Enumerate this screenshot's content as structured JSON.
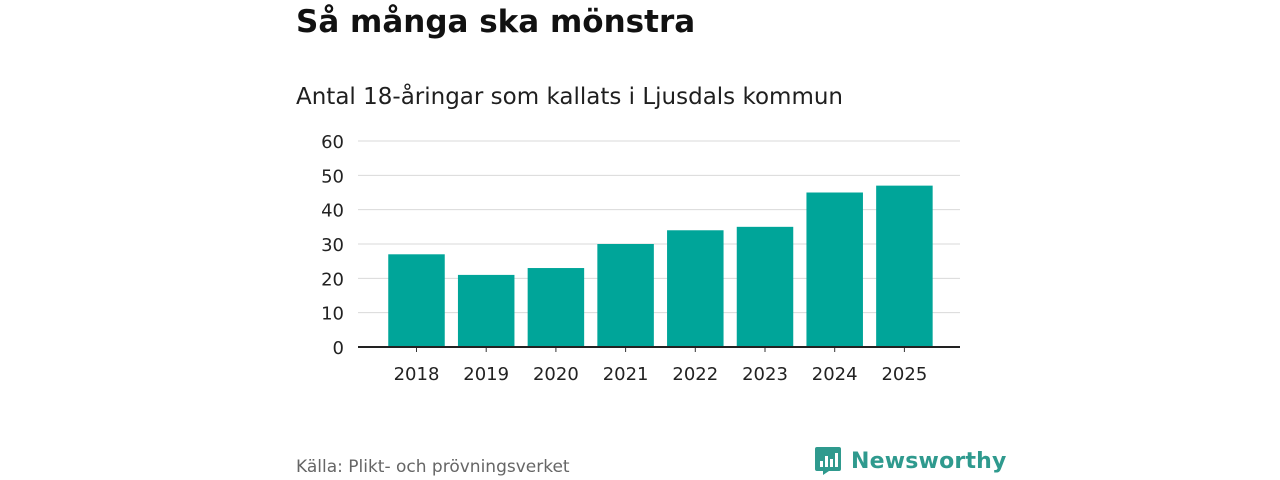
{
  "title": "Så många ska mönstra",
  "subtitle": "Antal 18-åringar som kallats i Ljusdals kommun",
  "source": "Källa: Plikt- och prövningsverket",
  "brand": {
    "name": "Newsworthy",
    "icon": "newsworthy-logo-icon",
    "color": "#2f9a8e"
  },
  "chart_data": {
    "type": "bar",
    "title": "Så många ska mönstra",
    "subtitle": "Antal 18-åringar som kallats i Ljusdals kommun",
    "categories": [
      "2018",
      "2019",
      "2020",
      "2021",
      "2022",
      "2023",
      "2024",
      "2025"
    ],
    "values": [
      27,
      21,
      23,
      30,
      34,
      35,
      45,
      47
    ],
    "xlabel": "",
    "ylabel": "",
    "ylim": [
      0,
      60
    ],
    "yticks": [
      0,
      10,
      20,
      30,
      40,
      50,
      60
    ],
    "grid": true,
    "bar_color": "#00a599"
  }
}
